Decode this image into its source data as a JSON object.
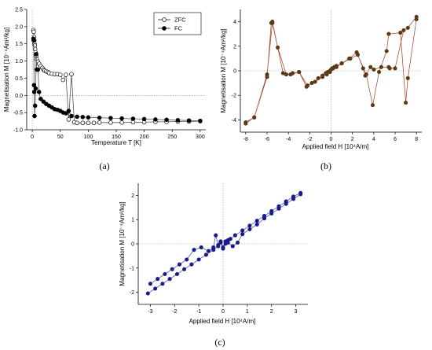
{
  "charts": [
    {
      "panel_label": "(a)",
      "type": "line",
      "xlabel": "Temperature T [K]",
      "ylabel": "Magnetisation M [10⁻⁴Am²/kg]",
      "xlim": [
        -10,
        310
      ],
      "ylim": [
        -1.0,
        2.5
      ],
      "xticks": [
        0,
        50,
        100,
        150,
        200,
        250,
        300
      ],
      "yticks": [
        -1.0,
        -0.5,
        0.0,
        0.5,
        1.0,
        1.5,
        2.0,
        2.5
      ],
      "ytick_labels": [
        "-1.0",
        "-0.5",
        "0.0",
        "0.5",
        "1.0",
        "1.5",
        "2.0",
        "2.5"
      ],
      "legend": {
        "position": "top-right",
        "entries": [
          "ZFC",
          "FC"
        ]
      },
      "line_color": "#555555",
      "series": [
        {
          "name": "ZFC",
          "marker": "open-circle",
          "x": [
            2,
            2.5,
            3,
            3.5,
            4,
            4.5,
            5,
            6,
            7,
            8,
            10,
            12,
            15,
            18,
            20,
            22,
            25,
            28,
            30,
            35,
            40,
            45,
            50,
            55,
            60,
            65,
            70,
            75,
            80,
            90,
            100,
            110,
            120,
            140,
            160,
            180,
            200,
            220,
            240,
            260,
            280,
            300
          ],
          "y": [
            1.9,
            1.85,
            1.7,
            1.6,
            1.5,
            1.45,
            1.35,
            1.25,
            1.15,
            1.05,
            0.98,
            0.92,
            0.85,
            0.8,
            0.75,
            0.72,
            0.7,
            0.68,
            0.65,
            0.63,
            0.62,
            0.62,
            0.6,
            0.45,
            0.6,
            -0.7,
            0.62,
            -0.78,
            -0.8,
            -0.8,
            -0.8,
            -0.8,
            -0.79,
            -0.79,
            -0.79,
            -0.78,
            -0.78,
            -0.77,
            -0.77,
            -0.76,
            -0.76,
            -0.75
          ]
        },
        {
          "name": "FC",
          "marker": "filled-circle",
          "x": [
            2,
            2.5,
            3,
            3.5,
            4,
            5,
            6,
            7,
            8,
            10,
            12,
            15,
            20,
            25,
            30,
            35,
            40,
            45,
            50,
            55,
            60,
            65,
            70,
            80,
            90,
            100,
            120,
            140,
            160,
            180,
            200,
            220,
            240,
            260,
            280,
            300
          ],
          "y": [
            1.65,
            1.6,
            0.3,
            0.1,
            -0.6,
            -0.3,
            0.2,
            1.2,
            0.75,
            0.75,
            0.1,
            -0.1,
            -0.18,
            -0.25,
            -0.3,
            -0.35,
            -0.4,
            -0.42,
            -0.45,
            -0.5,
            -0.52,
            -0.45,
            -0.6,
            -0.62,
            -0.63,
            -0.64,
            -0.65,
            -0.66,
            -0.67,
            -0.68,
            -0.69,
            -0.7,
            -0.71,
            -0.72,
            -0.73,
            -0.74
          ]
        }
      ]
    },
    {
      "panel_label": "(b)",
      "type": "line",
      "xlabel": "Applied field H [10⁴A/m]",
      "ylabel": "Magnetisation M [10⁻⁴Am²/kg]",
      "xlim": [
        -8.5,
        8.5
      ],
      "ylim": [
        -5,
        5
      ],
      "xticks": [
        -8,
        -6,
        -4,
        -2,
        0,
        2,
        4,
        6,
        8
      ],
      "yticks": [
        -4,
        -2,
        0,
        2,
        4
      ],
      "line_color": "#b0503a",
      "marker_color": "#5a3a16",
      "series": [
        {
          "marker": "filled-circle",
          "x": [
            -8,
            -7.2,
            -6,
            -5.6,
            -5.5,
            -4.5,
            -3.8,
            -3.0,
            -2.3,
            -1.8,
            -1.2,
            -0.8,
            -0.5,
            -0.3,
            -0.1,
            0,
            0.1,
            0.3,
            0.5,
            1.0,
            1.8,
            2.5,
            3.0,
            3.2,
            3.7,
            4.0,
            4.7,
            5.4,
            5.5,
            6.0,
            6.8,
            7.2,
            8.0,
            8.0,
            7.2,
            7.0,
            6.5,
            5.4,
            5.2,
            4.5,
            3.9,
            3.3,
            2.4,
            1.7,
            1.0,
            0.5,
            0.2,
            -0.1,
            -0.4,
            -0.8,
            -1.5,
            -2.2,
            -3.0,
            -3.6,
            -4.2,
            -5.0,
            -5.5,
            -6.0,
            -7.2,
            -8.0
          ],
          "y": [
            -4.3,
            -3.8,
            -0.5,
            3.9,
            4.0,
            -0.2,
            -0.3,
            -0.1,
            -1.3,
            -1.0,
            -0.6,
            -0.4,
            -0.2,
            -0.1,
            0,
            0.1,
            0.2,
            0.3,
            0.4,
            0.6,
            1.0,
            1.3,
            0.2,
            -0.4,
            0.3,
            0.1,
            0.3,
            0.3,
            0.2,
            0.2,
            3.3,
            3.5,
            4.4,
            4.2,
            -0.6,
            -2.6,
            3.1,
            3.0,
            1.6,
            -0.1,
            -2.8,
            -0.3,
            1.5,
            1.0,
            0.6,
            0.3,
            0.2,
            -0.1,
            -0.3,
            -0.5,
            -0.9,
            -1.2,
            -0.1,
            -0.2,
            -0.3,
            1.9,
            3.9,
            -0.3,
            -3.8,
            -4.2
          ]
        }
      ]
    },
    {
      "panel_label": "(c)",
      "type": "line",
      "xlabel": "Applied field H [10⁴A/m]",
      "ylabel": "Magnetisation M [10⁻⁴Am²/kg]",
      "xlim": [
        -3.5,
        3.5
      ],
      "ylim": [
        -2.5,
        2.5
      ],
      "xticks": [
        -3,
        -2,
        -1,
        0,
        1,
        2,
        3
      ],
      "yticks": [
        -2,
        -1,
        0,
        1,
        2
      ],
      "line_color": "#4a5aa8",
      "marker_color": "#1a1a8c",
      "series": [
        {
          "marker": "filled-circle",
          "x": [
            -3.1,
            -2.8,
            -2.5,
            -2.2,
            -1.9,
            -1.6,
            -1.3,
            -1.0,
            -0.7,
            -0.4,
            -0.2,
            -0.1,
            0,
            0.1,
            0.2,
            0.3,
            0.5,
            0.8,
            1.1,
            1.4,
            1.7,
            2.0,
            2.3,
            2.6,
            2.9,
            3.2,
            3.2,
            2.9,
            2.6,
            2.3,
            2.0,
            1.7,
            1.4,
            1.1,
            0.8,
            0.6,
            0.4,
            0.2,
            0.1,
            0,
            -0.1,
            -0.2,
            -0.3,
            -0.4,
            -0.6,
            -0.9,
            -1.2,
            -1.5,
            -1.8,
            -2.1,
            -2.4,
            -2.7,
            -3.0
          ],
          "y": [
            -2.05,
            -1.85,
            -1.65,
            -1.45,
            -1.25,
            -1.05,
            -0.85,
            -0.65,
            -0.45,
            -0.25,
            -0.1,
            0.05,
            -0.2,
            0.1,
            0.15,
            0.2,
            0.35,
            0.55,
            0.75,
            0.95,
            1.15,
            1.35,
            1.55,
            1.75,
            1.95,
            2.1,
            2.05,
            1.85,
            1.65,
            1.45,
            1.25,
            1.05,
            0.8,
            0.6,
            0.4,
            0.05,
            -0.1,
            0.05,
            0,
            -0.15,
            0.1,
            -0.05,
            0.35,
            -0.15,
            -0.3,
            -0.15,
            -0.25,
            -0.65,
            -0.85,
            -1.05,
            -1.25,
            -1.45,
            -1.65
          ]
        }
      ]
    }
  ]
}
